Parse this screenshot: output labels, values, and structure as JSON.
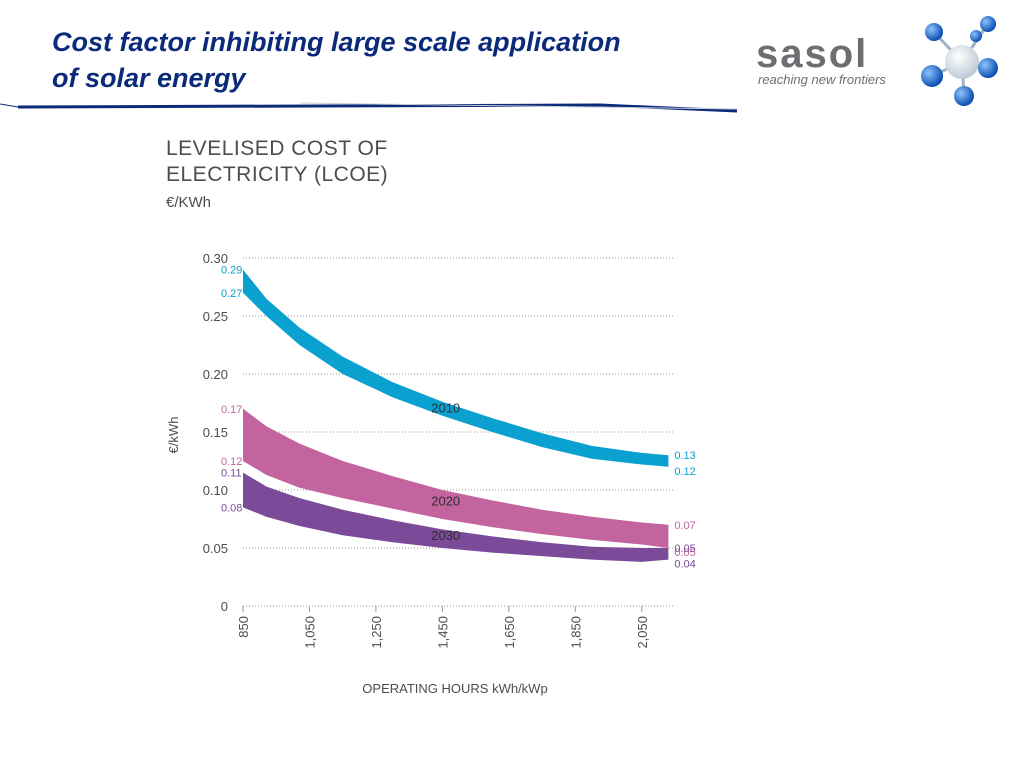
{
  "slide": {
    "title_line1": "Cost factor inhibiting large scale application",
    "title_line2": "of solar energy",
    "title_color": "#0b2a7a"
  },
  "logo": {
    "wordmark": "sasol",
    "tagline": "reaching new frontiers",
    "mark_icon": "molecule-icon",
    "color_blue": "#1e6fd6",
    "color_gray": "#6d6e71"
  },
  "chart_data": {
    "type": "area",
    "title_line1": "LEVELISED COST OF",
    "title_line2": "ELECTRICITY (LCOE)",
    "subtitle": "€/KWh",
    "xlabel": "OPERATING HOURS kWh/kWp",
    "ylabel": "€/kWh",
    "xlim": [
      850,
      2150
    ],
    "ylim": [
      0,
      0.3
    ],
    "x_ticks": [
      850,
      1050,
      1250,
      1450,
      1650,
      1850,
      2050
    ],
    "x_tick_labels": [
      "850",
      "1,050",
      "1,250",
      "1,450",
      "1,650",
      "1,850",
      "2,050"
    ],
    "y_ticks": [
      0,
      0.05,
      0.1,
      0.15,
      0.2,
      0.25,
      0.3
    ],
    "y_tick_labels": [
      "0",
      "0.05",
      "0.10",
      "0.15",
      "0.20",
      "0.25",
      "0.30"
    ],
    "grid": "horizontal dotted",
    "x": [
      850,
      920,
      1020,
      1150,
      1300,
      1450,
      1600,
      1750,
      1900,
      2050,
      2130
    ],
    "series": [
      {
        "name": "2010",
        "color": "#0aa0cf",
        "upper": [
          0.29,
          0.265,
          0.24,
          0.215,
          0.193,
          0.176,
          0.162,
          0.149,
          0.138,
          0.132,
          0.13
        ],
        "lower": [
          0.27,
          0.25,
          0.225,
          0.2,
          0.18,
          0.164,
          0.15,
          0.137,
          0.127,
          0.122,
          0.12
        ],
        "start_labels": [
          "0.29",
          "0.27"
        ],
        "end_labels": [
          "0.13",
          "0.12"
        ],
        "inline_label": "2010",
        "inline_label_x": 1460,
        "inline_label_y": 0.165
      },
      {
        "name": "2020",
        "color": "#c3649e",
        "upper": [
          0.17,
          0.155,
          0.14,
          0.125,
          0.112,
          0.1,
          0.091,
          0.083,
          0.077,
          0.072,
          0.07
        ],
        "lower": [
          0.125,
          0.113,
          0.102,
          0.093,
          0.084,
          0.075,
          0.068,
          0.062,
          0.057,
          0.053,
          0.05
        ],
        "start_labels": [
          "0.17",
          "0.12"
        ],
        "end_labels": [
          "0.07",
          "0.05"
        ],
        "inline_label": "2020",
        "inline_label_x": 1460,
        "inline_label_y": 0.085
      },
      {
        "name": "2030",
        "color": "#7b4a99",
        "upper": [
          0.115,
          0.103,
          0.093,
          0.083,
          0.074,
          0.066,
          0.06,
          0.055,
          0.051,
          0.05,
          0.05
        ],
        "lower": [
          0.085,
          0.077,
          0.069,
          0.061,
          0.055,
          0.05,
          0.046,
          0.043,
          0.04,
          0.038,
          0.04
        ],
        "start_labels": [
          "0.11",
          "0.08"
        ],
        "end_labels": [
          "0.05",
          "0.04"
        ],
        "inline_label": "2030",
        "inline_label_x": 1460,
        "inline_label_y": 0.055
      }
    ]
  }
}
